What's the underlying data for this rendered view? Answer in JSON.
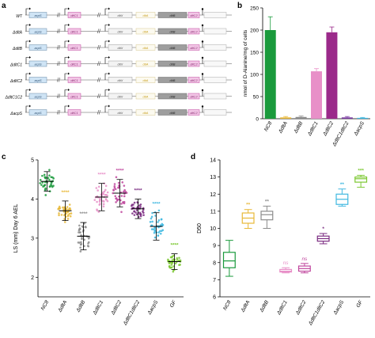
{
  "panels": {
    "a": {
      "letter": "a",
      "strains": [
        "WT",
        "ΔdltA",
        "ΔdltB",
        "ΔdltC1",
        "ΔdltC2",
        "ΔdltC1C2",
        "ΔacpS"
      ],
      "gene_labels": {
        "acpS": "acpS",
        "dltC1": "dltC1",
        "dltX": "dltX",
        "dltA": "dltA",
        "dltB": "dltB",
        "dltC2": "dltC2"
      },
      "colors": {
        "acpS": "#cfe4f5",
        "dltC": "#f2c6e6",
        "dltA": "#f7e9b8",
        "dltB": "#9e9e9e"
      }
    },
    "b": {
      "letter": "b",
      "chart_data": {
        "type": "bar",
        "ylabel": "nmol of D-Alanine/mg of cells",
        "ylim": [
          0,
          250
        ],
        "yticks": [
          0,
          50,
          100,
          150,
          200,
          250
        ],
        "categories": [
          "NC8",
          "ΔdltA",
          "ΔdltB",
          "ΔdltC1",
          "ΔdltC2",
          "ΔdltC1dltC2",
          "ΔacpS"
        ],
        "values": [
          200,
          3,
          4,
          107,
          195,
          3,
          2
        ],
        "errors": [
          30,
          2,
          2,
          6,
          12,
          2,
          1
        ],
        "colors": [
          "#1a9a3c",
          "#e8b838",
          "#8c8c8c",
          "#e890c8",
          "#9b2a8a",
          "#7a3aa0",
          "#40b8e0"
        ]
      }
    },
    "c": {
      "letter": "c",
      "chart_data": {
        "type": "scatter",
        "ylabel": "LS (mm) Day 6 AEL",
        "ylim": [
          1.5,
          5.0
        ],
        "yticks": [
          2,
          3,
          4,
          5
        ],
        "categories": [
          "NC8",
          "ΔdltA",
          "ΔdltB",
          "ΔdltC1",
          "ΔdltC2",
          "ΔdltC1dltC2",
          "ΔacpS",
          "GF"
        ],
        "means": [
          4.45,
          3.7,
          3.05,
          4.05,
          4.15,
          3.75,
          3.3,
          2.4
        ],
        "sd": [
          0.25,
          0.25,
          0.35,
          0.35,
          0.35,
          0.25,
          0.35,
          0.2
        ],
        "significance": [
          "",
          "****",
          "****",
          "****",
          "****",
          "****",
          "****",
          "****"
        ],
        "colors": [
          "#1a9a3c",
          "#e8b838",
          "#8c8c8c",
          "#e890c8",
          "#c0479e",
          "#7a2a80",
          "#40b8e0",
          "#7cc832"
        ]
      }
    },
    "d": {
      "letter": "d",
      "chart_data": {
        "type": "box",
        "ylabel": "D50",
        "ylim": [
          6,
          14
        ],
        "yticks": [
          6,
          7,
          8,
          9,
          10,
          11,
          12,
          13,
          14
        ],
        "categories": [
          "NC8",
          "ΔdltA",
          "ΔdltB",
          "ΔdltC1",
          "ΔdltC2",
          "ΔdltC1dltC2",
          "ΔacpS",
          "GF"
        ],
        "boxes": [
          {
            "min": 7.2,
            "q1": 7.7,
            "median": 8.1,
            "q3": 8.6,
            "max": 9.3
          },
          {
            "min": 10.0,
            "q1": 10.3,
            "median": 10.6,
            "q3": 10.9,
            "max": 11.1
          },
          {
            "min": 10.0,
            "q1": 10.5,
            "median": 10.8,
            "q3": 11.0,
            "max": 11.3
          },
          {
            "min": 7.4,
            "q1": 7.45,
            "median": 7.5,
            "q3": 7.6,
            "max": 7.7
          },
          {
            "min": 7.4,
            "q1": 7.5,
            "median": 7.65,
            "q3": 7.8,
            "max": 7.95
          },
          {
            "min": 9.1,
            "q1": 9.25,
            "median": 9.4,
            "q3": 9.55,
            "max": 9.7
          },
          {
            "min": 11.3,
            "q1": 11.4,
            "median": 11.7,
            "q3": 12.0,
            "max": 12.3
          },
          {
            "min": 12.4,
            "q1": 12.7,
            "median": 12.9,
            "q3": 13.0,
            "max": 13.1
          }
        ],
        "significance": [
          "",
          "**",
          "**",
          "ns",
          "ns",
          "*",
          "**",
          "***"
        ],
        "colors": [
          "#1a9a3c",
          "#e8b838",
          "#8c8c8c",
          "#e890c8",
          "#c0479e",
          "#7a2a80",
          "#40b8e0",
          "#7cc832"
        ]
      }
    }
  }
}
